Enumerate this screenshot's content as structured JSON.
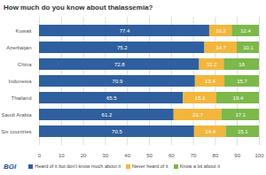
{
  "chart_data": {
    "type": "bar",
    "orientation": "horizontal",
    "stacked": true,
    "title": "How much do you know about thalassemia?",
    "caption": "BGI",
    "categories": [
      "Kuwait",
      "Azerbaijan",
      "China",
      "Indonesia",
      "Thailand",
      "Saudi Arabia",
      "Six countries"
    ],
    "series": [
      {
        "name": "Heard of it but don't know much about it",
        "color": "#2f5f9e",
        "values": [
          77.4,
          75.2,
          72.8,
          70.9,
          65.5,
          61.2,
          70.5
        ]
      },
      {
        "name": "Never heard of it",
        "color": "#f2b63c",
        "values": [
          10.2,
          14.7,
          11.2,
          13.4,
          15.1,
          21.7,
          14.4
        ]
      },
      {
        "name": "Know a lot about it",
        "color": "#7cb84a",
        "values": [
          12.4,
          10.1,
          16,
          15.7,
          19.4,
          17.1,
          15.1
        ]
      }
    ],
    "xlim": [
      0,
      100
    ],
    "xticks": [
      0,
      10,
      20,
      30,
      40,
      50,
      60,
      70,
      80,
      90,
      100
    ],
    "grid": true,
    "data_labels": true,
    "legend": "bottom"
  }
}
